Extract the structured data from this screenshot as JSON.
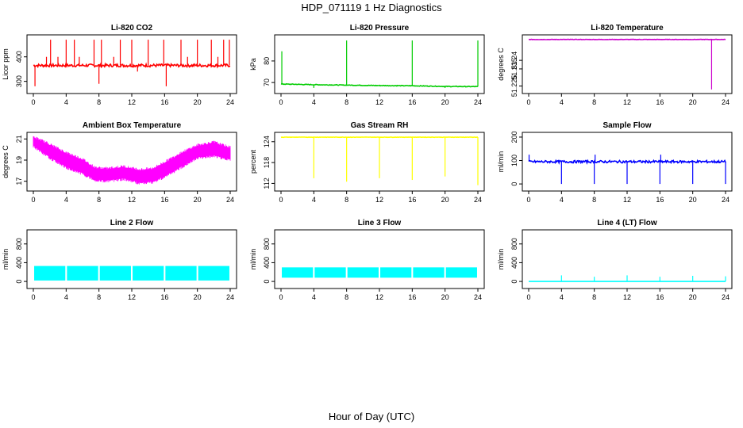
{
  "page": {
    "title": "HDP_071119  1 Hz Diagnostics",
    "xlabel": "Hour of Day (UTC)"
  },
  "chart_data": [
    {
      "id": "co2",
      "type": "line",
      "title": "Li-820 CO2",
      "ylabel": "Licor ppm",
      "color": "#ff0000",
      "xlim": [
        0,
        24
      ],
      "ylim": [
        260,
        480
      ],
      "xticks": [
        0,
        4,
        8,
        12,
        16,
        20,
        24
      ],
      "yticks": [
        300,
        400
      ],
      "baseline": 365,
      "noise": 6,
      "spikes": [
        {
          "x": 0.2,
          "y": 280
        },
        {
          "x": 1.6,
          "y": 400
        },
        {
          "x": 2.1,
          "y": 470
        },
        {
          "x": 3.0,
          "y": 400
        },
        {
          "x": 4.0,
          "y": 470
        },
        {
          "x": 5.0,
          "y": 470
        },
        {
          "x": 5.6,
          "y": 400
        },
        {
          "x": 7.4,
          "y": 470
        },
        {
          "x": 8.0,
          "y": 290
        },
        {
          "x": 8.3,
          "y": 470
        },
        {
          "x": 9.8,
          "y": 400
        },
        {
          "x": 10.6,
          "y": 470
        },
        {
          "x": 12.0,
          "y": 470
        },
        {
          "x": 12.7,
          "y": 340
        },
        {
          "x": 14.0,
          "y": 470
        },
        {
          "x": 15.9,
          "y": 470
        },
        {
          "x": 16.2,
          "y": 280
        },
        {
          "x": 18.0,
          "y": 470
        },
        {
          "x": 18.8,
          "y": 400
        },
        {
          "x": 20.0,
          "y": 470
        },
        {
          "x": 21.7,
          "y": 470
        },
        {
          "x": 22.5,
          "y": 400
        },
        {
          "x": 23.2,
          "y": 470
        },
        {
          "x": 23.9,
          "y": 470
        }
      ]
    },
    {
      "id": "pressure",
      "type": "line",
      "title": "Li-820 Pressure",
      "ylabel": "kPa",
      "color": "#00cc00",
      "xlim": [
        0,
        24
      ],
      "ylim": [
        66,
        91
      ],
      "xticks": [
        0,
        4,
        8,
        12,
        16,
        20,
        24
      ],
      "yticks": [
        70,
        80
      ],
      "baseline": [
        [
          0,
          69.3
        ],
        [
          4,
          69.0
        ],
        [
          8,
          68.8
        ],
        [
          12,
          68.6
        ],
        [
          16,
          68.5
        ],
        [
          20,
          68.2
        ],
        [
          24,
          68.1
        ]
      ],
      "noise": 0.15,
      "spikes": [
        {
          "x": 0.1,
          "y": 84.5
        },
        {
          "x": 4.0,
          "y": 67.5
        },
        {
          "x": 8.0,
          "y": 89.5
        },
        {
          "x": 16.0,
          "y": 89.5
        },
        {
          "x": 20.0,
          "y": 67.5
        },
        {
          "x": 24.0,
          "y": 89.5
        }
      ]
    },
    {
      "id": "li820temp",
      "type": "line",
      "title": "Li-820 Temperature",
      "ylabel": "degrees C",
      "color": "#cc00cc",
      "xlim": [
        0,
        24
      ],
      "ylim": [
        51.222,
        51.2535
      ],
      "xticks": [
        0,
        4,
        8,
        12,
        16,
        20,
        24
      ],
      "yticks": [
        51.225,
        51.235,
        51.24
      ],
      "baseline": 51.2522,
      "noise": 0.0001,
      "spikes": [
        {
          "x": 22.3,
          "y": 51.223
        }
      ]
    },
    {
      "id": "ambient",
      "type": "area",
      "title": "Ambient Box Temperature",
      "ylabel": "degrees C",
      "color": "#ff00ff",
      "xlim": [
        0,
        24
      ],
      "ylim": [
        16.3,
        21.4
      ],
      "xticks": [
        0,
        4,
        8,
        12,
        16,
        20,
        24
      ],
      "yticks": [
        17,
        19,
        21
      ],
      "upper": [
        [
          0,
          21.1
        ],
        [
          2,
          20.4
        ],
        [
          4,
          19.6
        ],
        [
          6,
          19.0
        ],
        [
          7.5,
          18.2
        ],
        [
          9,
          18.1
        ],
        [
          11,
          18.3
        ],
        [
          13,
          18.0
        ],
        [
          14.5,
          18.1
        ],
        [
          16,
          18.7
        ],
        [
          18,
          19.6
        ],
        [
          20,
          20.3
        ],
        [
          22,
          20.6
        ],
        [
          24,
          20.1
        ]
      ],
      "lower": [
        [
          0,
          20.4
        ],
        [
          2,
          19.3
        ],
        [
          4,
          18.4
        ],
        [
          6,
          17.8
        ],
        [
          7.5,
          17.2
        ],
        [
          9,
          17.1
        ],
        [
          11,
          17.3
        ],
        [
          13,
          16.9
        ],
        [
          14.5,
          17.0
        ],
        [
          16,
          17.5
        ],
        [
          18,
          18.4
        ],
        [
          20,
          19.3
        ],
        [
          22,
          19.5
        ],
        [
          24,
          19.1
        ]
      ]
    },
    {
      "id": "rh",
      "type": "line",
      "title": "Gas Stream RH",
      "ylabel": "percent",
      "color": "#ffff00",
      "xlim": [
        0,
        24
      ],
      "ylim": [
        110.5,
        126
      ],
      "xticks": [
        0,
        4,
        8,
        12,
        16,
        20,
        24
      ],
      "yticks": [
        112,
        118,
        124
      ],
      "baseline": 125.3,
      "noise": 0.05,
      "spikes": [
        {
          "x": 4.0,
          "y": 113.5
        },
        {
          "x": 8.0,
          "y": 112.5
        },
        {
          "x": 12.0,
          "y": 113.5
        },
        {
          "x": 16.0,
          "y": 113.0
        },
        {
          "x": 20.0,
          "y": 114.0
        },
        {
          "x": 24.0,
          "y": 111.5
        }
      ]
    },
    {
      "id": "sampleflow",
      "type": "line",
      "title": "Sample Flow",
      "ylabel": "ml/min",
      "color": "#0000ff",
      "xlim": [
        0,
        24
      ],
      "ylim": [
        -20,
        210
      ],
      "xticks": [
        0,
        4,
        8,
        12,
        16,
        20,
        24
      ],
      "yticks": [
        0,
        100,
        200
      ],
      "baseline": 95,
      "noise": 5,
      "spikes": [
        {
          "x": 0.05,
          "y": 125
        },
        {
          "x": 4.0,
          "y": 0
        },
        {
          "x": 8.0,
          "y": 0
        },
        {
          "x": 8.1,
          "y": 125
        },
        {
          "x": 12.0,
          "y": 0
        },
        {
          "x": 16.0,
          "y": 0
        },
        {
          "x": 16.1,
          "y": 125
        },
        {
          "x": 20.0,
          "y": 0
        },
        {
          "x": 24.0,
          "y": 0
        }
      ]
    },
    {
      "id": "line2",
      "type": "band",
      "title": "Line 2 Flow",
      "ylabel": "ml/min",
      "color": "#00ffff",
      "xlim": [
        0,
        24
      ],
      "ylim": [
        -100,
        1050
      ],
      "xticks": [
        0,
        4,
        8,
        12,
        16,
        20,
        24
      ],
      "yticks": [
        0,
        400,
        800
      ],
      "band": [
        20,
        330
      ],
      "gaps": [
        4,
        8,
        12,
        16,
        20
      ]
    },
    {
      "id": "line3",
      "type": "band",
      "title": "Line 3 Flow",
      "ylabel": "ml/min",
      "color": "#00ffff",
      "xlim": [
        0,
        24
      ],
      "ylim": [
        -100,
        1050
      ],
      "xticks": [
        0,
        4,
        8,
        12,
        16,
        20,
        24
      ],
      "yticks": [
        0,
        400,
        800
      ],
      "band": [
        80,
        300
      ],
      "gaps": [
        4,
        8,
        12,
        16,
        20
      ]
    },
    {
      "id": "line4",
      "type": "line",
      "title": "Line 4 (LT) Flow",
      "ylabel": "ml/min",
      "color": "#00ffff",
      "xlim": [
        0,
        24
      ],
      "ylim": [
        -100,
        1050
      ],
      "xticks": [
        0,
        4,
        8,
        12,
        16,
        20,
        24
      ],
      "yticks": [
        0,
        400,
        800
      ],
      "baseline": 0,
      "noise": 0,
      "spikes": [
        {
          "x": 4.0,
          "y": 130
        },
        {
          "x": 8.0,
          "y": 100
        },
        {
          "x": 12.0,
          "y": 130
        },
        {
          "x": 16.0,
          "y": 100
        },
        {
          "x": 20.0,
          "y": 120
        },
        {
          "x": 24.0,
          "y": 110
        }
      ]
    }
  ]
}
